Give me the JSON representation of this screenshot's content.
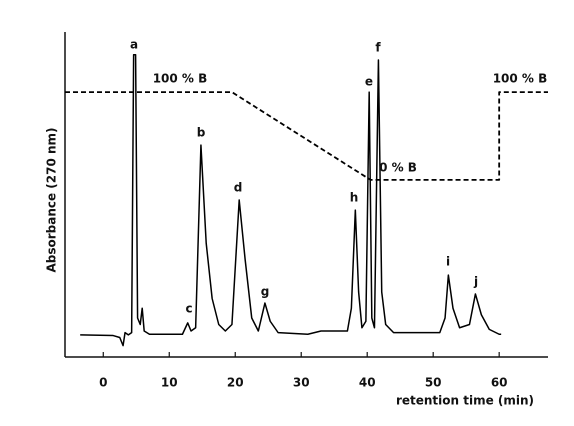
{
  "chart_data": {
    "type": "line",
    "xlabel": "retention time (min)",
    "ylabel": "Absorbance (270 nm)",
    "xlim": [
      -5.8,
      67.4
    ],
    "ylim": [
      0,
      100
    ],
    "xticks": [
      0,
      10,
      20,
      30,
      40,
      50,
      60
    ],
    "grid": false,
    "series": [
      {
        "color": "#000000",
        "style": "solid",
        "x": [
          -3.5,
          1.5,
          2.5,
          3.0,
          3.3,
          3.8,
          4.3,
          4.6,
          4.9,
          5.2,
          5.6,
          5.9,
          6.2,
          7,
          12,
          12.8,
          13.3,
          14,
          14.8,
          15.6,
          16.5,
          17.5,
          18.5,
          19.5,
          20.6,
          21.5,
          22.5,
          23.5,
          24.5,
          25.3,
          26.5,
          31,
          33,
          37,
          37.6,
          38.2,
          38.7,
          39.2,
          39.8,
          40.3,
          40.7,
          41.1,
          41.7,
          42.2,
          42.8,
          44,
          51,
          51.8,
          52.3,
          53,
          54,
          55.5,
          56.4,
          57.3,
          58.5,
          60,
          60.3
        ],
        "values": [
          6.8,
          6.6,
          6.0,
          3.5,
          7.5,
          6.8,
          7.5,
          93,
          93,
          12,
          10,
          15,
          8,
          7,
          7,
          10.5,
          8,
          9,
          65.2,
          35,
          18,
          10,
          8,
          10,
          48.3,
          30,
          12,
          8,
          16.6,
          11,
          7.5,
          7,
          8,
          8,
          15,
          45.2,
          20,
          9,
          11,
          81.5,
          12,
          9,
          91.4,
          20,
          10,
          7.5,
          7.5,
          12,
          25.2,
          15,
          9,
          10,
          19.4,
          13,
          8.5,
          7,
          7
        ]
      },
      {
        "color": "#000000",
        "style": "dashed",
        "x": [
          -5.8,
          19.5,
          40.5,
          60,
          60,
          67.4
        ],
        "values": [
          81.5,
          81.5,
          54.5,
          54.5,
          81.5,
          81.5
        ]
      }
    ],
    "annotations": [
      "a",
      "b",
      "c",
      "d",
      "g",
      "h",
      "e",
      "f",
      "i",
      "j",
      "100 % B",
      "0 % B",
      "100 % B"
    ]
  }
}
